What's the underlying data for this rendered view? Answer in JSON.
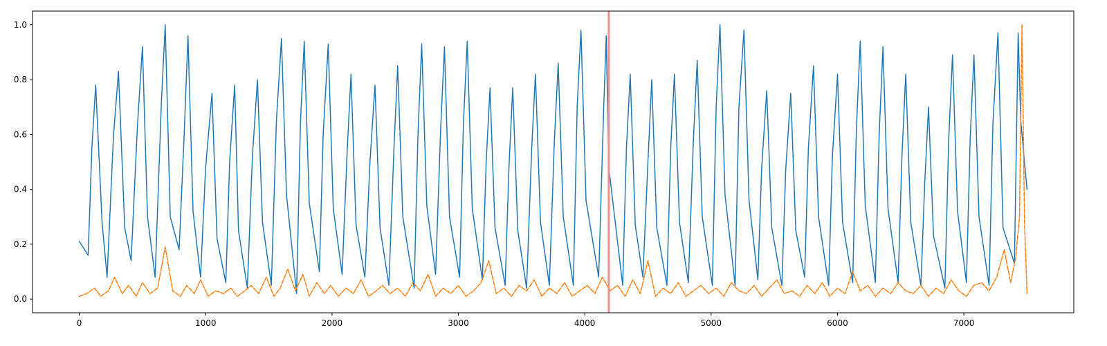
{
  "chart_data": {
    "type": "line",
    "title": "",
    "xlabel": "",
    "ylabel": "",
    "xlim": [
      -370,
      7870
    ],
    "ylim": [
      -0.05,
      1.05
    ],
    "grid": false,
    "xticks": [
      0,
      1000,
      2000,
      3000,
      4000,
      5000,
      6000,
      7000
    ],
    "xtick_labels": [
      "0",
      "1000",
      "2000",
      "3000",
      "4000",
      "5000",
      "6000",
      "7000"
    ],
    "yticks": [
      0.0,
      0.2,
      0.4,
      0.6,
      0.8,
      1.0
    ],
    "ytick_labels": [
      "0.0",
      "0.2",
      "0.4",
      "0.6",
      "0.8",
      "1.0"
    ],
    "vertical_marker": {
      "x": 4190,
      "color": "#f28e8e"
    },
    "series": [
      {
        "color": "#1f77b4",
        "style": "solid",
        "x": [
          0,
          70,
          100,
          130,
          180,
          220,
          270,
          310,
          360,
          410,
          460,
          500,
          540,
          600,
          650,
          680,
          720,
          790,
          830,
          860,
          900,
          960,
          1000,
          1050,
          1090,
          1160,
          1190,
          1230,
          1260,
          1330,
          1370,
          1410,
          1450,
          1520,
          1560,
          1600,
          1640,
          1720,
          1750,
          1780,
          1820,
          1900,
          1930,
          1970,
          2010,
          2080,
          2120,
          2150,
          2190,
          2260,
          2300,
          2340,
          2380,
          2450,
          2490,
          2520,
          2560,
          2650,
          2680,
          2710,
          2750,
          2820,
          2860,
          2890,
          2930,
          3010,
          3040,
          3070,
          3110,
          3190,
          3220,
          3250,
          3290,
          3370,
          3400,
          3430,
          3470,
          3540,
          3580,
          3610,
          3650,
          3720,
          3760,
          3790,
          3830,
          3910,
          3940,
          3970,
          4010,
          4110,
          4150,
          4170,
          4190,
          4300,
          4330,
          4360,
          4400,
          4460,
          4500,
          4530,
          4570,
          4650,
          4680,
          4710,
          4750,
          4820,
          4860,
          4890,
          4930,
          5010,
          5040,
          5070,
          5110,
          5190,
          5220,
          5260,
          5300,
          5370,
          5400,
          5440,
          5480,
          5560,
          5590,
          5630,
          5670,
          5740,
          5770,
          5810,
          5850,
          5930,
          5960,
          6000,
          6040,
          6120,
          6150,
          6180,
          6220,
          6300,
          6330,
          6360,
          6400,
          6480,
          6510,
          6540,
          6580,
          6660,
          6690,
          6720,
          6760,
          6850,
          6880,
          6910,
          6950,
          7020,
          7050,
          7080,
          7120,
          7200,
          7230,
          7270,
          7310,
          7400,
          7430,
          7450,
          7500
        ],
        "y": [
          0.21,
          0.16,
          0.55,
          0.78,
          0.28,
          0.08,
          0.59,
          0.83,
          0.26,
          0.14,
          0.63,
          0.92,
          0.3,
          0.08,
          0.72,
          1.0,
          0.3,
          0.18,
          0.6,
          0.96,
          0.32,
          0.08,
          0.48,
          0.75,
          0.22,
          0.06,
          0.5,
          0.78,
          0.25,
          0.04,
          0.52,
          0.8,
          0.28,
          0.05,
          0.65,
          0.95,
          0.38,
          0.02,
          0.64,
          0.94,
          0.35,
          0.1,
          0.6,
          0.93,
          0.33,
          0.09,
          0.54,
          0.82,
          0.27,
          0.08,
          0.5,
          0.78,
          0.26,
          0.05,
          0.55,
          0.85,
          0.3,
          0.04,
          0.6,
          0.93,
          0.34,
          0.09,
          0.62,
          0.92,
          0.3,
          0.08,
          0.64,
          0.94,
          0.33,
          0.07,
          0.5,
          0.77,
          0.26,
          0.05,
          0.48,
          0.77,
          0.25,
          0.04,
          0.55,
          0.82,
          0.28,
          0.05,
          0.58,
          0.86,
          0.3,
          0.05,
          0.7,
          0.98,
          0.36,
          0.08,
          0.7,
          0.96,
          0.48,
          0.05,
          0.55,
          0.82,
          0.27,
          0.08,
          0.5,
          0.8,
          0.26,
          0.05,
          0.55,
          0.82,
          0.28,
          0.06,
          0.58,
          0.87,
          0.3,
          0.05,
          0.7,
          1.0,
          0.38,
          0.05,
          0.7,
          0.98,
          0.36,
          0.07,
          0.48,
          0.76,
          0.26,
          0.05,
          0.47,
          0.75,
          0.25,
          0.08,
          0.55,
          0.85,
          0.3,
          0.05,
          0.52,
          0.82,
          0.28,
          0.06,
          0.62,
          0.94,
          0.34,
          0.06,
          0.6,
          0.92,
          0.33,
          0.06,
          0.52,
          0.82,
          0.28,
          0.05,
          0.42,
          0.7,
          0.23,
          0.04,
          0.58,
          0.89,
          0.32,
          0.06,
          0.58,
          0.89,
          0.3,
          0.05,
          0.64,
          0.97,
          0.26,
          0.13,
          0.97,
          0.65,
          0.4
        ]
      },
      {
        "color": "#ff7f0e",
        "style": "dashed",
        "x": [
          0,
          60,
          120,
          170,
          230,
          280,
          340,
          390,
          450,
          500,
          560,
          620,
          680,
          740,
          800,
          850,
          910,
          960,
          1020,
          1080,
          1140,
          1200,
          1250,
          1310,
          1360,
          1420,
          1480,
          1540,
          1590,
          1650,
          1710,
          1770,
          1820,
          1880,
          1940,
          1990,
          2050,
          2110,
          2170,
          2230,
          2290,
          2350,
          2400,
          2460,
          2520,
          2580,
          2640,
          2700,
          2760,
          2820,
          2880,
          2940,
          3000,
          3060,
          3120,
          3180,
          3240,
          3300,
          3360,
          3420,
          3480,
          3540,
          3600,
          3660,
          3720,
          3780,
          3840,
          3900,
          3960,
          4020,
          4080,
          4140,
          4200,
          4260,
          4320,
          4380,
          4440,
          4500,
          4560,
          4620,
          4680,
          4740,
          4800,
          4860,
          4920,
          4980,
          5040,
          5100,
          5160,
          5220,
          5280,
          5340,
          5400,
          5460,
          5520,
          5580,
          5640,
          5700,
          5760,
          5820,
          5880,
          5940,
          6000,
          6060,
          6120,
          6180,
          6240,
          6300,
          6360,
          6420,
          6480,
          6540,
          6600,
          6660,
          6720,
          6780,
          6840,
          6900,
          6960,
          7020,
          7080,
          7140,
          7200,
          7260,
          7320,
          7370,
          7410,
          7440,
          7460,
          7480,
          7500
        ],
        "y": [
          0.01,
          0.02,
          0.04,
          0.01,
          0.03,
          0.08,
          0.02,
          0.05,
          0.01,
          0.06,
          0.02,
          0.04,
          0.19,
          0.03,
          0.01,
          0.05,
          0.02,
          0.07,
          0.01,
          0.03,
          0.02,
          0.04,
          0.01,
          0.03,
          0.05,
          0.02,
          0.08,
          0.01,
          0.04,
          0.11,
          0.03,
          0.09,
          0.01,
          0.06,
          0.02,
          0.05,
          0.01,
          0.04,
          0.02,
          0.07,
          0.01,
          0.03,
          0.05,
          0.02,
          0.04,
          0.01,
          0.06,
          0.03,
          0.09,
          0.01,
          0.04,
          0.02,
          0.05,
          0.01,
          0.03,
          0.06,
          0.14,
          0.02,
          0.04,
          0.01,
          0.05,
          0.03,
          0.07,
          0.01,
          0.04,
          0.02,
          0.06,
          0.01,
          0.03,
          0.05,
          0.02,
          0.08,
          0.03,
          0.05,
          0.01,
          0.07,
          0.02,
          0.14,
          0.01,
          0.04,
          0.02,
          0.06,
          0.01,
          0.03,
          0.05,
          0.02,
          0.04,
          0.01,
          0.06,
          0.03,
          0.02,
          0.05,
          0.01,
          0.04,
          0.07,
          0.02,
          0.03,
          0.01,
          0.05,
          0.02,
          0.06,
          0.01,
          0.04,
          0.02,
          0.1,
          0.03,
          0.05,
          0.01,
          0.04,
          0.02,
          0.06,
          0.03,
          0.02,
          0.05,
          0.01,
          0.04,
          0.02,
          0.07,
          0.03,
          0.01,
          0.05,
          0.06,
          0.03,
          0.08,
          0.18,
          0.06,
          0.15,
          0.3,
          1.0,
          0.28,
          0.02
        ]
      }
    ]
  }
}
